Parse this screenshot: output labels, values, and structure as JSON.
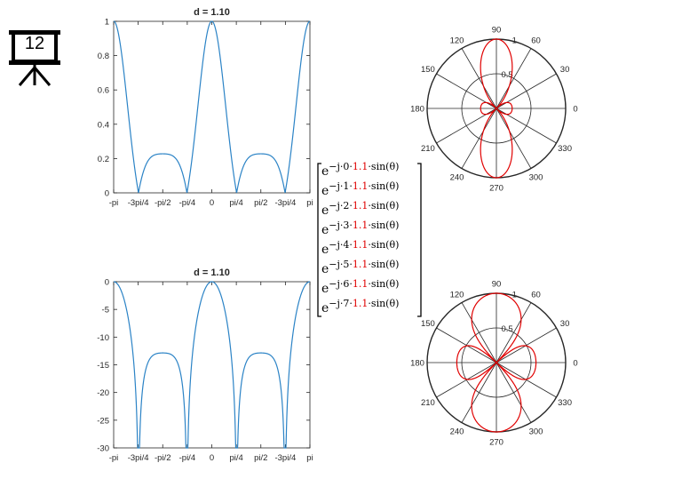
{
  "slide": {
    "number": "12"
  },
  "chart_data": [
    {
      "type": "line",
      "title": "d = 1.10",
      "xticks": [
        "-pi",
        "-3pi/4",
        "-pi/2",
        "-pi/4",
        "0",
        "pi/4",
        "pi/2",
        "-3pi/4",
        "pi"
      ],
      "xlim": [
        -3.14159,
        3.14159
      ],
      "ylim": [
        0,
        1
      ],
      "yticks": [
        "0",
        "0.2",
        "0.4",
        "0.6",
        "0.8",
        "1"
      ],
      "series": [
        {
          "formula": "|sum_{k=0..7} exp(-j*k*1.1*sin(theta))| / 8",
          "scale": "linear",
          "color": "#2b83c6"
        }
      ]
    },
    {
      "type": "line",
      "title": "d = 1.10",
      "xticks": [
        "-pi",
        "-3pi/4",
        "-pi/2",
        "-pi/4",
        "0",
        "pi/4",
        "pi/2",
        "-3pi/4",
        "pi"
      ],
      "xlim": [
        -3.14159,
        3.14159
      ],
      "ylim": [
        -30,
        0
      ],
      "yticks": [
        "-30",
        "-25",
        "-20",
        "-15",
        "-10",
        "-5",
        "0"
      ],
      "series": [
        {
          "formula": "20*log10(|AF|/8)",
          "scale": "dB",
          "color": "#2b83c6"
        }
      ]
    },
    {
      "type": "polar",
      "angle_ticks": [
        "0",
        "30",
        "60",
        "90",
        "120",
        "150",
        "180",
        "210",
        "240",
        "270",
        "300",
        "330"
      ],
      "radial_ticks": [
        "0.5",
        "1"
      ],
      "rlim": [
        0,
        1
      ],
      "series": [
        {
          "element_spacing": 1.1,
          "elements": 8,
          "color": "#e00000"
        }
      ]
    },
    {
      "type": "polar",
      "angle_ticks": [
        "0",
        "30",
        "60",
        "90",
        "120",
        "150",
        "180",
        "210",
        "240",
        "270",
        "300",
        "330"
      ],
      "radial_ticks": [
        "0.5",
        "1"
      ],
      "rlim": [
        0,
        1
      ],
      "series": [
        {
          "element_spacing": 1.1,
          "elements": 8,
          "scale": "dB (30 dB range)",
          "color": "#e00000"
        }
      ]
    }
  ],
  "matrix": {
    "base": "e",
    "prefix": "−j·",
    "coef": "1.1",
    "suffix": "·sin(θ)",
    "rows": [
      "0",
      "1",
      "2",
      "3",
      "4",
      "5",
      "6",
      "7"
    ]
  }
}
